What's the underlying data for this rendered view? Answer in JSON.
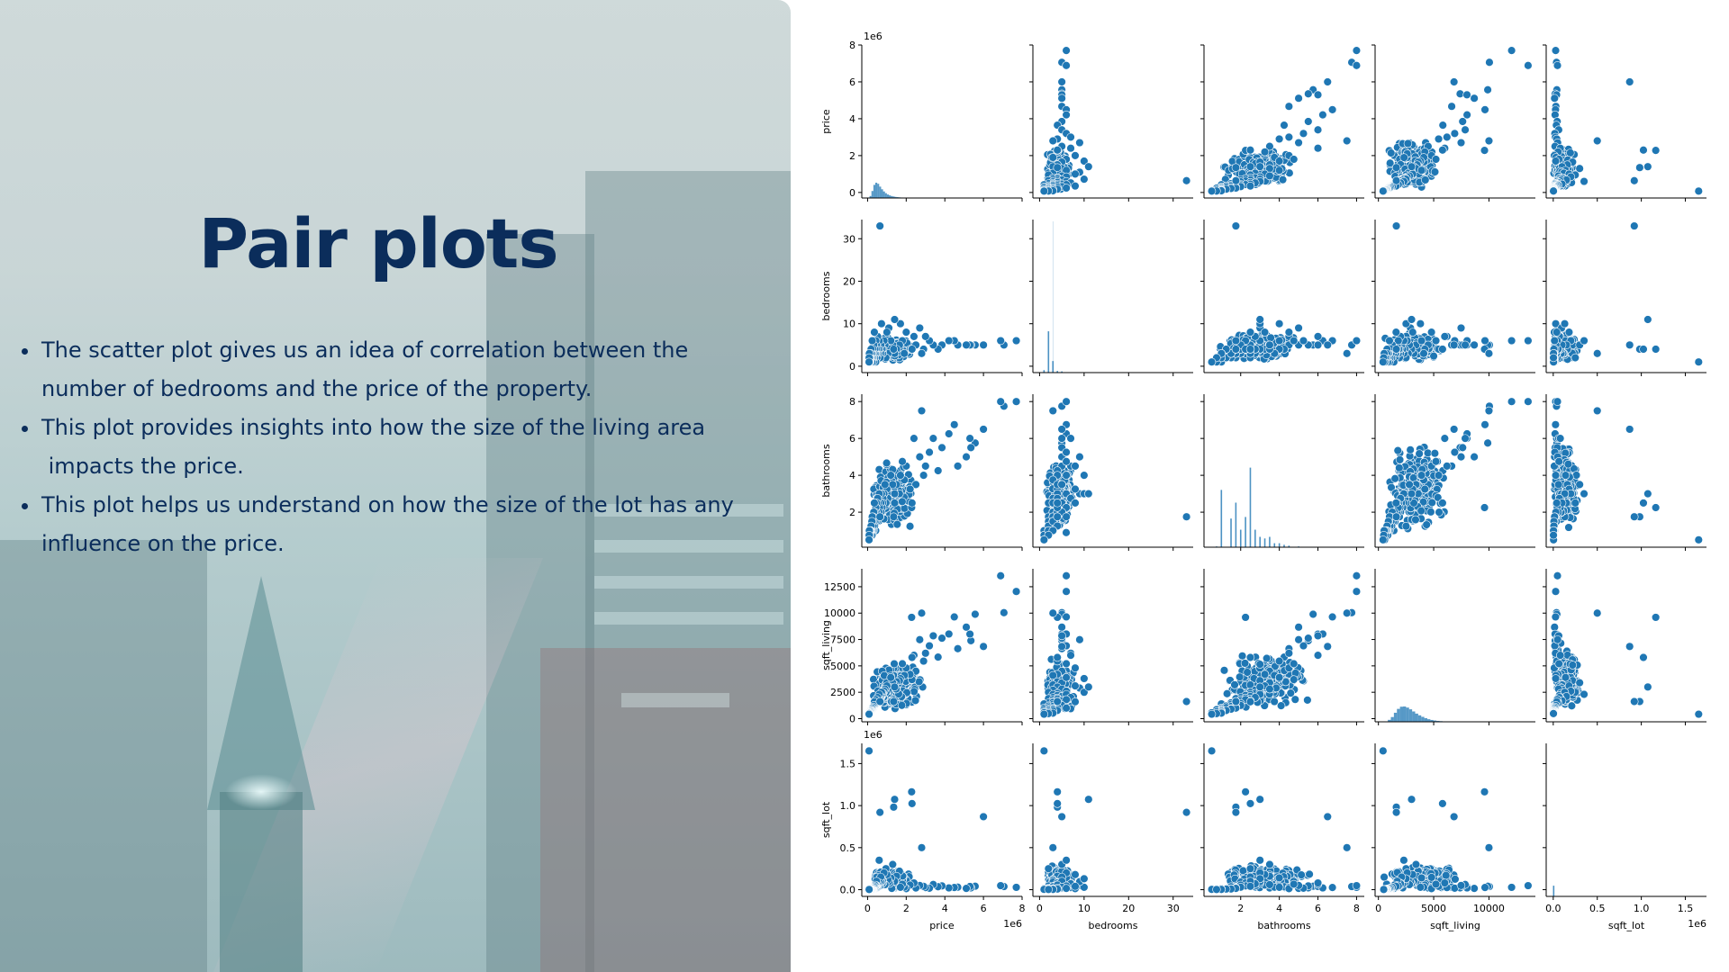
{
  "slide": {
    "title": "Pair plots",
    "bullets": [
      {
        "lines": [
          "The scatter plot gives us an idea of correlation between the",
          "number of bedrooms and the price of the property."
        ]
      },
      {
        "lines": [
          "This plot provides insights into how the size of the living area",
          " impacts the price."
        ]
      },
      {
        "lines": [
          "This plot helps us understand on how the size of the lot has any",
          "influence on the price."
        ]
      }
    ]
  },
  "colors": {
    "title": "#0b2d5b",
    "text": "#0b2d5b",
    "marker": "#1f77b4",
    "marker_edge": "#ffffff",
    "axis": "#000000"
  },
  "chart_data": {
    "type": "scatter",
    "subtype": "pairplot",
    "variables": [
      "price",
      "bedrooms",
      "bathrooms",
      "sqft_living",
      "sqft_lot"
    ],
    "diagonal": "histogram",
    "axes": {
      "price": {
        "label": "price",
        "range": [
          -300000,
          8000000
        ],
        "ticks": [
          0,
          2000000,
          4000000,
          6000000,
          8000000
        ],
        "tick_labels": [
          "0",
          "2",
          "4",
          "6",
          "8"
        ],
        "offset_label": "1e6"
      },
      "bedrooms": {
        "label": "bedrooms",
        "range": [
          -1.5,
          34.5
        ],
        "ticks": [
          0,
          10,
          20,
          30
        ],
        "tick_labels": [
          "0",
          "10",
          "20",
          "30"
        ],
        "offset_label": ""
      },
      "bathrooms": {
        "label": "bathrooms",
        "range": [
          0.1,
          8.4
        ],
        "ticks": [
          2,
          4,
          6,
          8
        ],
        "tick_labels": [
          "2",
          "4",
          "6",
          "8"
        ],
        "offset_label": ""
      },
      "sqft_living": {
        "label": "sqft_living",
        "range": [
          -300,
          14200
        ],
        "ticks": [
          0,
          2500,
          5000,
          7500,
          10000,
          12500
        ],
        "tick_labels": [
          "0",
          "2500",
          "5000",
          "7500",
          "10000",
          "12500"
        ],
        "offset_label": ""
      },
      "sqft_lot": {
        "label": "sqft_lot",
        "range": [
          -80000,
          1740000
        ],
        "ticks": [
          0,
          500000,
          1000000,
          1500000
        ],
        "tick_labels": [
          "0.0",
          "0.5",
          "1.0",
          "1.5"
        ],
        "offset_label": "1e6"
      }
    },
    "x_tick_labels": {
      "price": [
        "0",
        "2",
        "4",
        "6",
        "8"
      ],
      "bedrooms": [
        "0",
        "10",
        "20",
        "30"
      ],
      "bathrooms": [
        "2",
        "4",
        "6",
        "8"
      ],
      "sqft_living": [
        "0",
        "5000",
        "10000"
      ],
      "sqft_lot": [
        "0.0",
        "0.5",
        "1.0",
        "1.5"
      ]
    },
    "x_ticks": {
      "price": [
        0,
        2000000,
        4000000,
        6000000,
        8000000
      ],
      "bedrooms": [
        0,
        10,
        20,
        30
      ],
      "bathrooms": [
        2,
        4,
        6,
        8
      ],
      "sqft_living": [
        0,
        5000,
        10000
      ],
      "sqft_lot": [
        0,
        500000,
        1000000,
        1500000
      ]
    },
    "points": {
      "price": [
        7700000,
        7060000,
        6890000,
        5570000,
        5350000,
        5300000,
        5110000,
        4670000,
        4490000,
        4210000,
        3850000,
        3650000,
        3400000,
        3200000,
        3000000,
        2900000,
        2700000,
        2500000,
        2400000,
        2200000,
        2000000,
        1900000,
        1800000,
        1700000,
        1650000,
        1500000,
        1400000,
        1300000,
        1200000,
        1150000,
        1100000,
        1050000,
        1000000,
        950000,
        900000,
        850000,
        800000,
        780000,
        750000,
        720000,
        700000,
        680000,
        650000,
        620000,
        600000,
        580000,
        550000,
        520000,
        500000,
        480000,
        460000,
        450000,
        440000,
        430000,
        420000,
        400000,
        380000,
        360000,
        350000,
        340000,
        320000,
        300000,
        290000,
        280000,
        260000,
        250000,
        240000,
        230000,
        220000,
        200000,
        180000,
        160000,
        150000,
        140000,
        120000,
        100000,
        90000,
        80000,
        75000,
        2280000,
        1400000,
        1350000,
        640000,
        6000000,
        2800000,
        2300000
      ],
      "bedrooms": [
        6,
        5,
        6,
        5,
        5,
        5,
        5,
        5,
        6,
        6,
        5,
        4,
        5,
        6,
        7,
        4,
        9,
        5,
        7,
        4,
        8,
        3,
        6,
        10,
        5,
        4,
        3,
        5,
        6,
        4,
        9,
        3,
        8,
        2,
        5,
        6,
        4,
        3,
        4,
        10,
        3,
        5,
        2,
        4,
        6,
        3,
        4,
        7,
        3,
        2,
        5,
        4,
        3,
        6,
        1,
        3,
        4,
        2,
        8,
        3,
        5,
        1,
        2,
        4,
        3,
        2,
        6,
        1,
        3,
        2,
        4,
        3,
        2,
        1,
        2,
        1,
        3,
        2,
        1,
        4,
        11,
        4,
        33,
        5,
        3,
        4
      ],
      "bathrooms": [
        8,
        7.75,
        8,
        5.75,
        5.5,
        6,
        5,
        4.5,
        6.75,
        6.25,
        5.5,
        4.25,
        6,
        5.25,
        4.5,
        4,
        5,
        3.5,
        6,
        3.25,
        4.5,
        3.75,
        4.75,
        4,
        3,
        3.5,
        2.5,
        3.5,
        4,
        3,
        3,
        2.75,
        3.25,
        2.5,
        3.5,
        3,
        2.75,
        2.5,
        2.25,
        3,
        2,
        2.5,
        1.75,
        2.25,
        3,
        2,
        2.5,
        2.75,
        1.75,
        1.5,
        2.5,
        2,
        1.75,
        2.25,
        1,
        1.5,
        2,
        1.25,
        2.5,
        1.5,
        2,
        1,
        1.25,
        1.75,
        1.5,
        1,
        1.75,
        0.75,
        1.5,
        1,
        1.25,
        1,
        1,
        0.75,
        1,
        0.5,
        1,
        0.75,
        0.5,
        2.25,
        3,
        1.75,
        1.75,
        6.5,
        7.5,
        2.5
      ],
      "sqft_living": [
        12050,
        10040,
        13540,
        9890,
        7390,
        8010,
        8670,
        6630,
        9640,
        8020,
        7620,
        5830,
        7850,
        6900,
        6200,
        5450,
        7480,
        4500,
        6000,
        4200,
        4800,
        4100,
        5200,
        3800,
        3600,
        3500,
        3200,
        3400,
        3900,
        3000,
        2900,
        2700,
        3100,
        2500,
        2800,
        2600,
        2400,
        2300,
        2200,
        2500,
        2000,
        2100,
        1900,
        1950,
        2300,
        1800,
        1850,
        2000,
        1600,
        1500,
        1700,
        1650,
        1550,
        1800,
        1400,
        1350,
        1450,
        1200,
        1600,
        1150,
        1250,
        1000,
        1050,
        1100,
        950,
        900,
        1000,
        850,
        900,
        800,
        780,
        750,
        700,
        650,
        600,
        560,
        520,
        480,
        420,
        9600,
        3000,
        1620,
        1620,
        6840,
        10000,
        5800
      ],
      "sqft_lot": [
        27600,
        37000,
        48000,
        41000,
        22000,
        38000,
        15000,
        30000,
        26000,
        21000,
        45000,
        35000,
        62000,
        18000,
        25000,
        40000,
        50000,
        20000,
        80000,
        55000,
        12000,
        30000,
        65000,
        28000,
        220000,
        160000,
        100000,
        300000,
        140000,
        75000,
        95000,
        120000,
        180000,
        250000,
        60000,
        200000,
        85000,
        110000,
        70000,
        130000,
        90000,
        150000,
        45000,
        80000,
        350000,
        40000,
        60000,
        70000,
        30000,
        20000,
        100000,
        50000,
        25000,
        45000,
        15000,
        35000,
        55000,
        10000,
        40000,
        12000,
        30000,
        8000,
        9000,
        20000,
        7000,
        6000,
        15000,
        5000,
        8000,
        5000,
        7500,
        6500,
        5000,
        4800,
        4000,
        3500,
        3000,
        2500,
        1651000,
        1164000,
        1074000,
        982000,
        920000,
        868000,
        500000,
        1024000
      ],
      "dense_clusters": [
        {
          "x_var": "price",
          "y_var": "bedrooms",
          "x_range": [
            100000,
            2500000
          ],
          "y_range": [
            1,
            7
          ]
        },
        {
          "x_var": "price",
          "y_var": "bathrooms",
          "x_range": [
            100000,
            2500000
          ],
          "y_range": [
            0.75,
            5
          ]
        },
        {
          "x_var": "price",
          "y_var": "sqft_living",
          "x_range": [
            100000,
            3000000
          ],
          "y_range": [
            400,
            5500
          ]
        },
        {
          "x_var": "price",
          "y_var": "sqft_lot",
          "x_range": [
            100000,
            2500000
          ],
          "y_range": [
            0,
            250000
          ]
        },
        {
          "x_var": "bedrooms",
          "y_var": "bathrooms",
          "x_range": [
            1,
            8
          ],
          "y_range": [
            0.75,
            5
          ]
        },
        {
          "x_var": "bedrooms",
          "y_var": "sqft_living",
          "x_range": [
            1,
            8
          ],
          "y_range": [
            400,
            6000
          ]
        },
        {
          "x_var": "bedrooms",
          "y_var": "sqft_lot",
          "x_range": [
            1,
            8
          ],
          "y_range": [
            0,
            300000
          ]
        },
        {
          "x_var": "bathrooms",
          "y_var": "sqft_living",
          "x_range": [
            0.75,
            6
          ],
          "y_range": [
            400,
            6500
          ]
        },
        {
          "x_var": "bathrooms",
          "y_var": "sqft_lot",
          "x_range": [
            0.75,
            6
          ],
          "y_range": [
            0,
            300000
          ]
        },
        {
          "x_var": "sqft_living",
          "y_var": "sqft_lot",
          "x_range": [
            400,
            7500
          ],
          "y_range": [
            0,
            300000
          ]
        }
      ]
    },
    "histograms": {
      "price": {
        "range": [
          0,
          3000000
        ],
        "counts": [
          5,
          90,
          320,
          600,
          700,
          650,
          520,
          400,
          300,
          220,
          160,
          120,
          90,
          70,
          50,
          40,
          30,
          22,
          16,
          12,
          9,
          7,
          5,
          4,
          3,
          2,
          2,
          1,
          1,
          1
        ]
      },
      "bedrooms": {
        "bars": [
          {
            "x": 1,
            "count": 0.06
          },
          {
            "x": 2,
            "count": 1
          },
          {
            "x": 3,
            "count": 0.28
          },
          {
            "x": 4,
            "count": 0.04
          },
          {
            "x": 5,
            "count": 0.03
          },
          {
            "x": 6,
            "count": 0.01
          }
        ]
      },
      "bathrooms": {
        "bars": [
          {
            "x": 0.75,
            "count": 0.01
          },
          {
            "x": 1,
            "count": 0.72
          },
          {
            "x": 1.5,
            "count": 0.36
          },
          {
            "x": 1.75,
            "count": 0.56
          },
          {
            "x": 2,
            "count": 0.22
          },
          {
            "x": 2.25,
            "count": 0.38
          },
          {
            "x": 2.5,
            "count": 1
          },
          {
            "x": 2.75,
            "count": 0.22
          },
          {
            "x": 3,
            "count": 0.13
          },
          {
            "x": 3.25,
            "count": 0.11
          },
          {
            "x": 3.5,
            "count": 0.13
          },
          {
            "x": 3.75,
            "count": 0.05
          },
          {
            "x": 4,
            "count": 0.05
          },
          {
            "x": 4.25,
            "count": 0.03
          },
          {
            "x": 4.5,
            "count": 0.02
          },
          {
            "x": 5,
            "count": 0.01
          },
          {
            "x": 5.5,
            "count": 0.005
          }
        ]
      },
      "sqft_living": {
        "range": [
          300,
          8000
        ],
        "counts": [
          3,
          20,
          90,
          220,
          420,
          600,
          700,
          710,
          660,
          580,
          480,
          380,
          300,
          230,
          170,
          120,
          85,
          60,
          42,
          30,
          20,
          14,
          9,
          6,
          4,
          3,
          2,
          1
        ]
      },
      "sqft_lot": {
        "bars": [
          {
            "x": 5000,
            "count": 1
          },
          {
            "x": 30000,
            "count": 0.04
          }
        ]
      }
    }
  }
}
